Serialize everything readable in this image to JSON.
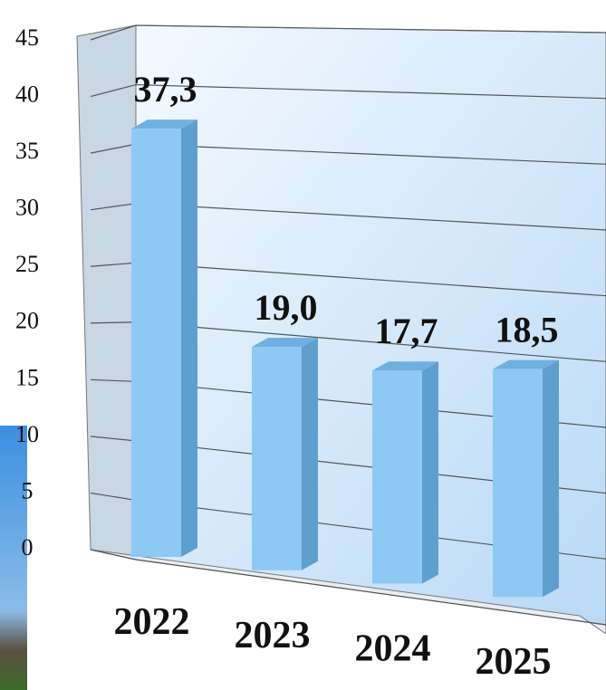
{
  "chart_data": {
    "type": "bar3d",
    "categories": [
      "2022",
      "2023",
      "2024",
      "2025"
    ],
    "values": [
      37.3,
      19.0,
      17.7,
      18.5
    ],
    "value_labels": [
      "37,3",
      "19,0",
      "17,7",
      "18,5"
    ],
    "color": "#8ec8f5",
    "ylim": [
      0,
      45
    ],
    "yticks": [
      0,
      5,
      10,
      15,
      20,
      25,
      30,
      35,
      40,
      45
    ],
    "grid": true
  }
}
